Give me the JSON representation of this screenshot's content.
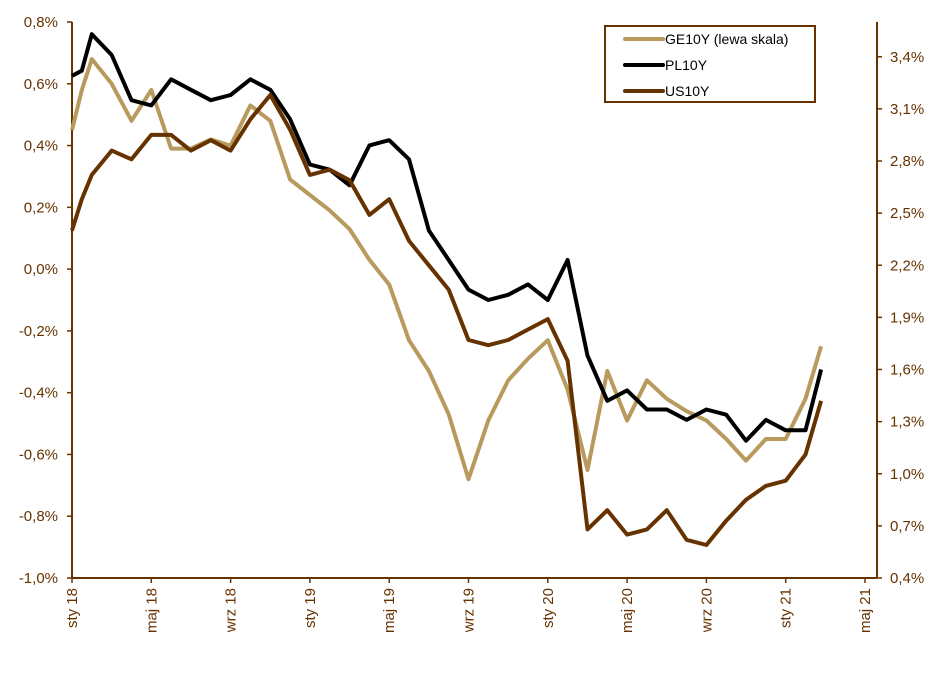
{
  "chart_data": {
    "type": "line",
    "title": "",
    "left_axis": {
      "ylim": [
        -1.0,
        0.8
      ],
      "ticks": [
        "-1,0%",
        "-0,8%",
        "-0,6%",
        "-0,4%",
        "-0,2%",
        "0,0%",
        "0,2%",
        "0,4%",
        "0,6%",
        "0,8%"
      ],
      "tick_values": [
        -1.0,
        -0.8,
        -0.6,
        -0.4,
        -0.2,
        0.0,
        0.2,
        0.4,
        0.6,
        0.8
      ]
    },
    "right_axis": {
      "ylim": [
        0.4,
        3.6
      ],
      "ticks": [
        "0,4%",
        "0,7%",
        "1,0%",
        "1,3%",
        "1,6%",
        "1,9%",
        "2,2%",
        "2,5%",
        "2,8%",
        "3,1%",
        "3,4%"
      ],
      "tick_values": [
        0.4,
        0.7,
        1.0,
        1.3,
        1.6,
        1.9,
        2.2,
        2.5,
        2.8,
        3.1,
        3.4
      ]
    },
    "x_axis": {
      "range": [
        "2018-01-01",
        "2021-05-01"
      ],
      "ticks": [
        "sty 18",
        "maj 18",
        "wrz 18",
        "sty 19",
        "maj 19",
        "wrz 19",
        "sty 20",
        "maj 20",
        "wrz 20",
        "sty 21",
        "maj 21"
      ],
      "tick_dates": [
        "2018-01-01",
        "2018-05-01",
        "2018-09-01",
        "2019-01-01",
        "2019-05-01",
        "2019-09-01",
        "2020-01-01",
        "2020-05-01",
        "2020-09-01",
        "2021-01-01",
        "2021-05-01"
      ]
    },
    "grid": false,
    "legend_placement": "top-right",
    "x": [
      "2018-01-01",
      "2018-01-16",
      "2018-02-01",
      "2018-03-01",
      "2018-04-01",
      "2018-05-01",
      "2018-06-01",
      "2018-07-01",
      "2018-08-01",
      "2018-09-01",
      "2018-10-01",
      "2018-11-01",
      "2018-12-01",
      "2019-01-01",
      "2019-02-01",
      "2019-03-01",
      "2019-04-01",
      "2019-05-01",
      "2019-06-01",
      "2019-07-01",
      "2019-08-01",
      "2019-09-01",
      "2019-10-01",
      "2019-11-01",
      "2019-12-01",
      "2020-01-01",
      "2020-02-01",
      "2020-03-01",
      "2020-04-01",
      "2020-05-01",
      "2020-06-01",
      "2020-07-01",
      "2020-08-01",
      "2020-09-01",
      "2020-10-01",
      "2020-11-01",
      "2020-12-01",
      "2021-01-01",
      "2021-02-01",
      "2021-02-25"
    ],
    "series": [
      {
        "name": "GE10Y (lewa skala)",
        "axis": "left",
        "color": "#b89a5e",
        "values": [
          0.45,
          0.58,
          0.68,
          0.6,
          0.48,
          0.58,
          0.39,
          0.39,
          0.42,
          0.4,
          0.53,
          0.48,
          0.29,
          0.24,
          0.19,
          0.13,
          0.03,
          -0.05,
          -0.23,
          -0.33,
          -0.47,
          -0.68,
          -0.49,
          -0.36,
          -0.29,
          -0.23,
          -0.39,
          -0.65,
          -0.33,
          -0.49,
          -0.36,
          -0.42,
          -0.46,
          -0.49,
          -0.55,
          -0.62,
          -0.55,
          -0.55,
          -0.42,
          -0.25
        ]
      },
      {
        "name": "PL10Y",
        "axis": "right",
        "color": "#000000",
        "values": [
          3.29,
          3.32,
          3.53,
          3.41,
          3.15,
          3.12,
          3.27,
          3.21,
          3.15,
          3.18,
          3.27,
          3.21,
          3.04,
          2.78,
          2.75,
          2.66,
          2.89,
          2.92,
          2.81,
          2.4,
          2.23,
          2.06,
          2.0,
          2.03,
          2.09,
          2.0,
          2.23,
          1.68,
          1.42,
          1.48,
          1.37,
          1.37,
          1.31,
          1.37,
          1.34,
          1.19,
          1.31,
          1.25,
          1.25,
          1.6
        ]
      },
      {
        "name": "US10Y",
        "axis": "right",
        "color": "#663300",
        "values": [
          2.4,
          2.58,
          2.72,
          2.86,
          2.81,
          2.95,
          2.95,
          2.86,
          2.92,
          2.86,
          3.04,
          3.18,
          2.98,
          2.72,
          2.75,
          2.69,
          2.49,
          2.58,
          2.34,
          2.2,
          2.06,
          1.77,
          1.74,
          1.77,
          1.83,
          1.89,
          1.65,
          0.68,
          0.79,
          0.65,
          0.68,
          0.79,
          0.62,
          0.59,
          0.73,
          0.85,
          0.93,
          0.96,
          1.11,
          1.42
        ]
      }
    ],
    "axis_color": "#663300"
  }
}
